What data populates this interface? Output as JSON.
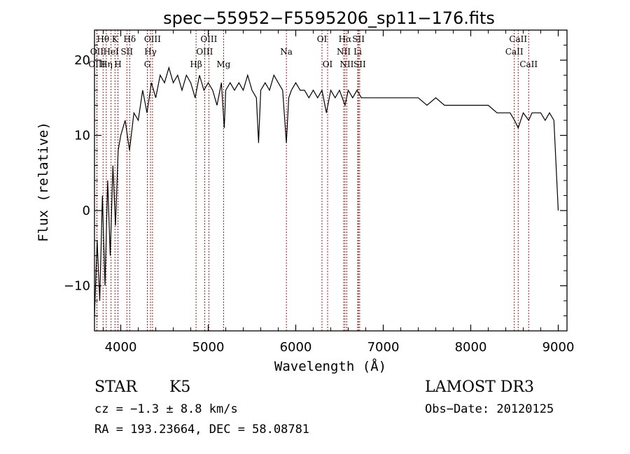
{
  "chart_data": {
    "type": "line",
    "title": "spec−55952−F5595206_sp11−176.fits",
    "xlabel": "Wavelength (Å)",
    "ylabel": "Flux (relative)",
    "xlim": [
      3700,
      9100
    ],
    "ylim": [
      -16,
      24
    ],
    "xticks": [
      4000,
      5000,
      6000,
      7000,
      8000,
      9000
    ],
    "yticks": [
      -10,
      0,
      10,
      20
    ],
    "ytick_labels": [
      "−10",
      "0",
      "10",
      "20"
    ],
    "series": [
      {
        "name": "spectrum",
        "x": [
          3700,
          3730,
          3760,
          3790,
          3820,
          3850,
          3880,
          3910,
          3940,
          3970,
          4000,
          4050,
          4100,
          4150,
          4200,
          4250,
          4300,
          4350,
          4400,
          4450,
          4500,
          4550,
          4600,
          4650,
          4700,
          4750,
          4800,
          4850,
          4900,
          4950,
          5000,
          5050,
          5100,
          5150,
          5183,
          5200,
          5250,
          5300,
          5350,
          5400,
          5450,
          5500,
          5550,
          5575,
          5600,
          5650,
          5700,
          5750,
          5800,
          5850,
          5893,
          5920,
          5950,
          6000,
          6050,
          6100,
          6150,
          6200,
          6250,
          6300,
          6350,
          6400,
          6450,
          6500,
          6563,
          6600,
          6650,
          6700,
          6750,
          6800,
          6900,
          7000,
          7100,
          7200,
          7300,
          7400,
          7500,
          7600,
          7700,
          7800,
          7900,
          8000,
          8100,
          8200,
          8300,
          8400,
          8450,
          8500,
          8542,
          8600,
          8662,
          8700,
          8750,
          8800,
          8850,
          8900,
          8950,
          9000
        ],
        "y": [
          -14,
          -4,
          -12,
          2,
          -10,
          4,
          -6,
          6,
          -2,
          8,
          10,
          12,
          8,
          13,
          12,
          16,
          13,
          17,
          15,
          18,
          17,
          19,
          17,
          18,
          16,
          18,
          17,
          15,
          18,
          16,
          17,
          16,
          14,
          17,
          11,
          16,
          17,
          16,
          17,
          16,
          18,
          16,
          15,
          9,
          16,
          17,
          16,
          18,
          17,
          16,
          9,
          15,
          16,
          17,
          16,
          16,
          15,
          16,
          15,
          16,
          13,
          16,
          15,
          16,
          14,
          16,
          15,
          16,
          15,
          15,
          15,
          15,
          15,
          15,
          15,
          15,
          14,
          15,
          14,
          14,
          14,
          14,
          14,
          14,
          13,
          13,
          13,
          12,
          11,
          13,
          12,
          13,
          13,
          13,
          12,
          13,
          12,
          0
        ]
      }
    ],
    "emission_lines": [
      {
        "label": "Hθ",
        "x": 3798,
        "row": 0
      },
      {
        "label": "K",
        "x": 3934,
        "row": 0
      },
      {
        "label": "Hδ",
        "x": 4102,
        "row": 0
      },
      {
        "label": "OIII",
        "x": 4363,
        "row": 0
      },
      {
        "label": "OIII",
        "x": 5007,
        "row": 0
      },
      {
        "label": "OI",
        "x": 6300,
        "row": 0
      },
      {
        "label": "Hα",
        "x": 6563,
        "row": 0
      },
      {
        "label": "SII",
        "x": 6717,
        "row": 0
      },
      {
        "label": "CaII",
        "x": 8542,
        "row": 0
      },
      {
        "label": "OII",
        "x": 3727,
        "row": 1
      },
      {
        "label": "HeI",
        "x": 3889,
        "row": 1
      },
      {
        "label": "SII",
        "x": 4070,
        "row": 1
      },
      {
        "label": "Hγ",
        "x": 4340,
        "row": 1
      },
      {
        "label": "OIII",
        "x": 4959,
        "row": 1
      },
      {
        "label": "Na",
        "x": 5893,
        "row": 1
      },
      {
        "label": "NII",
        "x": 6548,
        "row": 1
      },
      {
        "label": "Li",
        "x": 6708,
        "row": 1
      },
      {
        "label": "CaII",
        "x": 8498,
        "row": 1
      },
      {
        "label": "OIII",
        "x": 3727,
        "row": 2
      },
      {
        "label": "Hη",
        "x": 3835,
        "row": 2
      },
      {
        "label": "H",
        "x": 3968,
        "row": 2
      },
      {
        "label": "G",
        "x": 4304,
        "row": 2
      },
      {
        "label": "Hβ",
        "x": 4861,
        "row": 2
      },
      {
        "label": "Mg",
        "x": 5175,
        "row": 2
      },
      {
        "label": "OI",
        "x": 6364,
        "row": 2
      },
      {
        "label": "NII",
        "x": 6583,
        "row": 2
      },
      {
        "label": "SII",
        "x": 6731,
        "row": 2
      },
      {
        "label": "CaII",
        "x": 8662,
        "row": 2
      }
    ]
  },
  "info": {
    "class_label": "STAR",
    "subclass": "K5",
    "survey": "LAMOST DR3",
    "cz": "cz = −1.3 ± 8.8 km/s",
    "obs_date": "Obs−Date: 20120125",
    "coords": "RA = 193.23664, DEC =  58.08781"
  }
}
